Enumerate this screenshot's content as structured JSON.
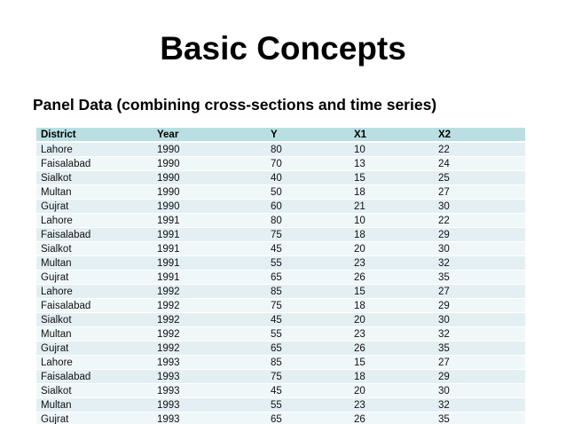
{
  "slide": {
    "title": "Basic Concepts",
    "subtitle": "Panel Data (combining cross-sections and time series)"
  },
  "table": {
    "columns": [
      "District",
      "Year",
      "Y",
      "X1",
      "X2"
    ],
    "rows": [
      [
        "Lahore",
        "1990",
        "80",
        "10",
        "22"
      ],
      [
        "Faisalabad",
        "1990",
        "70",
        "13",
        "24"
      ],
      [
        "Sialkot",
        "1990",
        "40",
        "15",
        "25"
      ],
      [
        "Multan",
        "1990",
        "50",
        "18",
        "27"
      ],
      [
        "Gujrat",
        "1990",
        "60",
        "21",
        "30"
      ],
      [
        "Lahore",
        "1991",
        "80",
        "10",
        "22"
      ],
      [
        "Faisalabad",
        "1991",
        "75",
        "18",
        "29"
      ],
      [
        "Sialkot",
        "1991",
        "45",
        "20",
        "30"
      ],
      [
        "Multan",
        "1991",
        "55",
        "23",
        "32"
      ],
      [
        "Gujrat",
        "1991",
        "65",
        "26",
        "35"
      ],
      [
        "Lahore",
        "1992",
        "85",
        "15",
        "27"
      ],
      [
        "Faisalabad",
        "1992",
        "75",
        "18",
        "29"
      ],
      [
        "Sialkot",
        "1992",
        "45",
        "20",
        "30"
      ],
      [
        "Multan",
        "1992",
        "55",
        "23",
        "32"
      ],
      [
        "Gujrat",
        "1992",
        "65",
        "26",
        "35"
      ],
      [
        "Lahore",
        "1993",
        "85",
        "15",
        "27"
      ],
      [
        "Faisalabad",
        "1993",
        "75",
        "18",
        "29"
      ],
      [
        "Sialkot",
        "1993",
        "45",
        "20",
        "30"
      ],
      [
        "Multan",
        "1993",
        "55",
        "23",
        "32"
      ],
      [
        "Gujrat",
        "1993",
        "65",
        "26",
        "35"
      ]
    ]
  },
  "colors": {
    "background": "#ffffff",
    "text": "#000000",
    "table_header_bg": "#badfe3",
    "table_row_odd_bg": "#e3eff3",
    "table_row_even_bg": "#f0f7f9"
  }
}
